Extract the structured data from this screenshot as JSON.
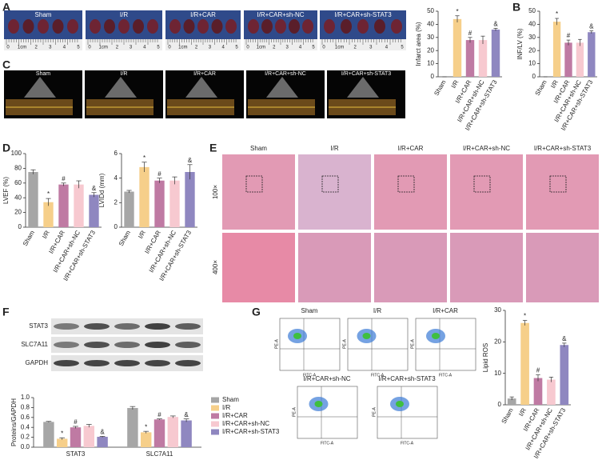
{
  "panel_letters": [
    "A",
    "B",
    "C",
    "D",
    "E",
    "F",
    "G"
  ],
  "groups": [
    "Sham",
    "I/R",
    "I/R+CAR",
    "I/R+CAR+sh-NC",
    "I/R+CAR+sh-STAT3"
  ],
  "ruler_labels": [
    "0",
    "1cm",
    "2",
    "3",
    "4",
    "5"
  ],
  "magnifications": [
    "100×",
    "400×"
  ],
  "blot_labels": [
    "STAT3",
    "SLC7A11",
    "GAPDH"
  ],
  "flow_axes": {
    "x": "FITC-A",
    "y": "PE-A"
  },
  "chart_data": [
    {
      "type": "bar",
      "ylabel": "Infarct area (%)",
      "categories": [
        "Sham",
        "I/R",
        "I/R+CAR",
        "I/R+CAR+sh-NC",
        "I/R+CAR+sh-STAT3"
      ],
      "values": [
        0,
        44,
        28,
        28,
        36
      ],
      "errors": [
        0,
        2.5,
        2,
        3,
        1
      ],
      "annotations": [
        null,
        "*",
        "#",
        null,
        "&"
      ],
      "colors": [
        "#a6a6a6",
        "#f6cf8a",
        "#bf7aa3",
        "#f7c9d0",
        "#8f87c0"
      ],
      "ylim": [
        0,
        50
      ],
      "yticks": [
        0,
        10,
        20,
        30,
        40,
        50
      ]
    },
    {
      "type": "bar",
      "ylabel": "INF/LV (%)",
      "categories": [
        "Sham",
        "I/R",
        "I/R+CAR",
        "I/R+CAR+sh-NC",
        "I/R+CAR+sh-STAT3"
      ],
      "values": [
        0,
        42,
        26,
        26,
        34
      ],
      "errors": [
        0,
        2.5,
        2,
        2.5,
        1
      ],
      "annotations": [
        null,
        "*",
        "#",
        null,
        "&"
      ],
      "colors": [
        "#a6a6a6",
        "#f6cf8a",
        "#bf7aa3",
        "#f7c9d0",
        "#8f87c0"
      ],
      "ylim": [
        0,
        50
      ],
      "yticks": [
        0,
        10,
        20,
        30,
        40,
        50
      ]
    },
    {
      "type": "bar",
      "ylabel": "LVEF (%)",
      "categories": [
        "Sham",
        "I/R",
        "I/R+CAR",
        "I/R+CAR+sh-NC",
        "I/R+CAR+sh-STAT3"
      ],
      "values": [
        75,
        34,
        58,
        58,
        44
      ],
      "errors": [
        3,
        5,
        2,
        5,
        3
      ],
      "annotations": [
        null,
        "*",
        "#",
        null,
        "&"
      ],
      "colors": [
        "#a6a6a6",
        "#f6cf8a",
        "#bf7aa3",
        "#f7c9d0",
        "#8f87c0"
      ],
      "ylim": [
        0,
        100
      ],
      "yticks": [
        0,
        20,
        40,
        60,
        80,
        100
      ]
    },
    {
      "type": "bar",
      "ylabel": "LVIDd (mm)",
      "categories": [
        "Sham",
        "I/R",
        "I/R+CAR",
        "I/R+CAR+sh-NC",
        "I/R+CAR+sh-STAT3"
      ],
      "values": [
        2.9,
        4.9,
        3.8,
        3.8,
        4.5
      ],
      "errors": [
        0.1,
        0.4,
        0.2,
        0.3,
        0.6
      ],
      "annotations": [
        null,
        "*",
        "#",
        null,
        "&"
      ],
      "colors": [
        "#a6a6a6",
        "#f6cf8a",
        "#bf7aa3",
        "#f7c9d0",
        "#8f87c0"
      ],
      "ylim": [
        0,
        6
      ],
      "yticks": [
        0,
        2,
        4,
        6
      ]
    },
    {
      "type": "grouped-bar",
      "ylabel": "Proteins/GAPDH",
      "categories": [
        "STAT3",
        "SLC7A11"
      ],
      "series": [
        {
          "name": "Sham",
          "color": "#a6a6a6",
          "values": [
            0.51,
            0.79
          ],
          "errors": [
            0.01,
            0.03
          ],
          "annotations": [
            null,
            null
          ]
        },
        {
          "name": "I/R",
          "color": "#f6cf8a",
          "values": [
            0.17,
            0.3
          ],
          "errors": [
            0.02,
            0.02
          ],
          "annotations": [
            "*",
            "*"
          ]
        },
        {
          "name": "I/R+CAR",
          "color": "#bf7aa3",
          "values": [
            0.4,
            0.56
          ],
          "errors": [
            0.02,
            0.01
          ],
          "annotations": [
            "#",
            "#"
          ]
        },
        {
          "name": "I/R+CAR+sh-NC",
          "color": "#f7c9d0",
          "values": [
            0.43,
            0.61
          ],
          "errors": [
            0.03,
            0.02
          ],
          "annotations": [
            null,
            null
          ]
        },
        {
          "name": "I/R+CAR+sh-STAT3",
          "color": "#8f87c0",
          "values": [
            0.21,
            0.54
          ],
          "errors": [
            0.01,
            0.03
          ],
          "annotations": [
            "&",
            "&"
          ]
        }
      ],
      "ylim": [
        0,
        1
      ],
      "yticks": [
        {
          "value": 0,
          "label": "0.0"
        },
        0.2,
        0.4,
        0.6,
        0.8,
        {
          "value": 1,
          "label": "1.0"
        }
      ],
      "legend": "right"
    },
    {
      "type": "bar",
      "ylabel": "Lipid ROS",
      "categories": [
        "Sham",
        "I/R",
        "I/R+CAR",
        "I/R+CAR+sh-NC",
        "I/R+CAR+sh-STAT3"
      ],
      "values": [
        2,
        26,
        8.5,
        8,
        19
      ],
      "errors": [
        0.5,
        0.8,
        1,
        0.8,
        0.6
      ],
      "annotations": [
        null,
        "*",
        "#",
        null,
        "&"
      ],
      "colors": [
        "#a6a6a6",
        "#f6cf8a",
        "#bf7aa3",
        "#f7c9d0",
        "#8f87c0"
      ],
      "ylim": [
        0,
        30
      ],
      "yticks": [
        0,
        10,
        20,
        30
      ]
    }
  ]
}
